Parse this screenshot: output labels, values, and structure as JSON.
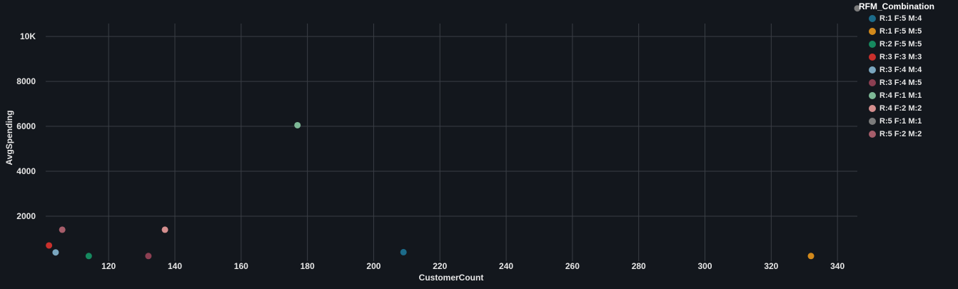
{
  "colors": {
    "background": "#13171d",
    "grid": "#3a3e45",
    "text": "#e6e6e6"
  },
  "chart_data": {
    "type": "scatter",
    "xlabel": "CustomerCount",
    "ylabel": "AvgSpending",
    "xlim": [
      101,
      346
    ],
    "ylim": [
      0,
      11400
    ],
    "xticks": [
      120,
      140,
      160,
      180,
      200,
      220,
      240,
      260,
      280,
      300,
      320,
      340
    ],
    "yticks": [
      2000,
      4000,
      6000,
      8000,
      10000
    ],
    "yticklabels": [
      "2000",
      "4000",
      "6000",
      "8000",
      "10K"
    ],
    "grid": true,
    "legend_title": "RFM_Combination",
    "legend_position": "right",
    "series": [
      {
        "name": "R:1 F:5 M:4",
        "color": "#1c6b8a",
        "points": [
          [
            209,
            400
          ]
        ]
      },
      {
        "name": "R:1 F:5 M:5",
        "color": "#d2891b",
        "points": [
          [
            332,
            230
          ]
        ]
      },
      {
        "name": "R:2 F:5 M:5",
        "color": "#16895f",
        "points": [
          [
            114,
            230
          ]
        ]
      },
      {
        "name": "R:3 F:3 M:3",
        "color": "#c9302c",
        "points": [
          [
            102,
            700
          ]
        ]
      },
      {
        "name": "R:3 F:4 M:4",
        "color": "#7aa6bf",
        "points": [
          [
            104,
            390
          ]
        ]
      },
      {
        "name": "R:3 F:4 M:5",
        "color": "#8c3f52",
        "points": [
          [
            132,
            230
          ]
        ]
      },
      {
        "name": "R:4 F:1 M:1",
        "color": "#7db896",
        "points": [
          [
            177,
            6050
          ]
        ]
      },
      {
        "name": "R:4 F:2 M:2",
        "color": "#d48e8e",
        "points": [
          [
            137,
            1400
          ]
        ]
      },
      {
        "name": "R:5 F:1 M:1",
        "color": "#7b7b7b",
        "points": [
          [
            346,
            11250
          ]
        ]
      },
      {
        "name": "R:5 F:2 M:2",
        "color": "#a65d6a",
        "points": [
          [
            106,
            1400
          ]
        ]
      }
    ]
  }
}
